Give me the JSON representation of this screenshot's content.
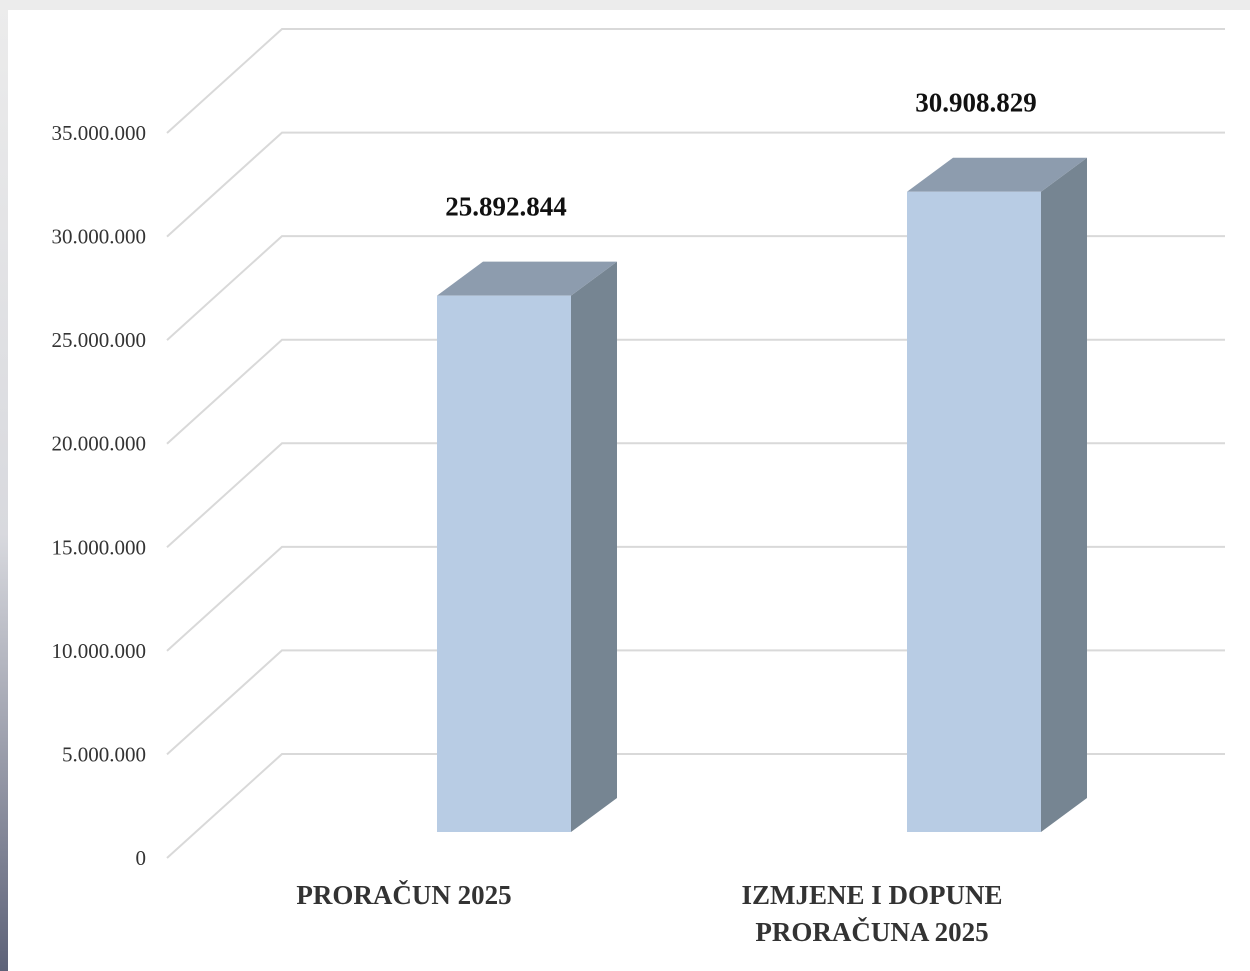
{
  "chart_data": {
    "type": "bar",
    "three_d": true,
    "categories": [
      [
        "PRORAČUN 2025"
      ],
      [
        "IZMJENE I DOPUNE",
        "PRORAČUNA 2025"
      ]
    ],
    "values": [
      25892844,
      30908829
    ],
    "data_labels": [
      "25.892.844",
      "30.908.829"
    ],
    "ylim": [
      0,
      35000000
    ],
    "ytick_values": [
      0,
      5000000,
      10000000,
      15000000,
      20000000,
      25000000,
      30000000,
      35000000
    ],
    "ytick_labels": [
      "0",
      "5.000.000",
      "10.000.000",
      "15.000.000",
      "20.000.000",
      "25.000.000",
      "30.000.000",
      "35.000.000"
    ],
    "grid": true,
    "colors": {
      "bar_front": "#b8cce4",
      "bar_top": "#8d9cae",
      "bar_side": "#768592",
      "grid": "#d9d9d9"
    }
  }
}
